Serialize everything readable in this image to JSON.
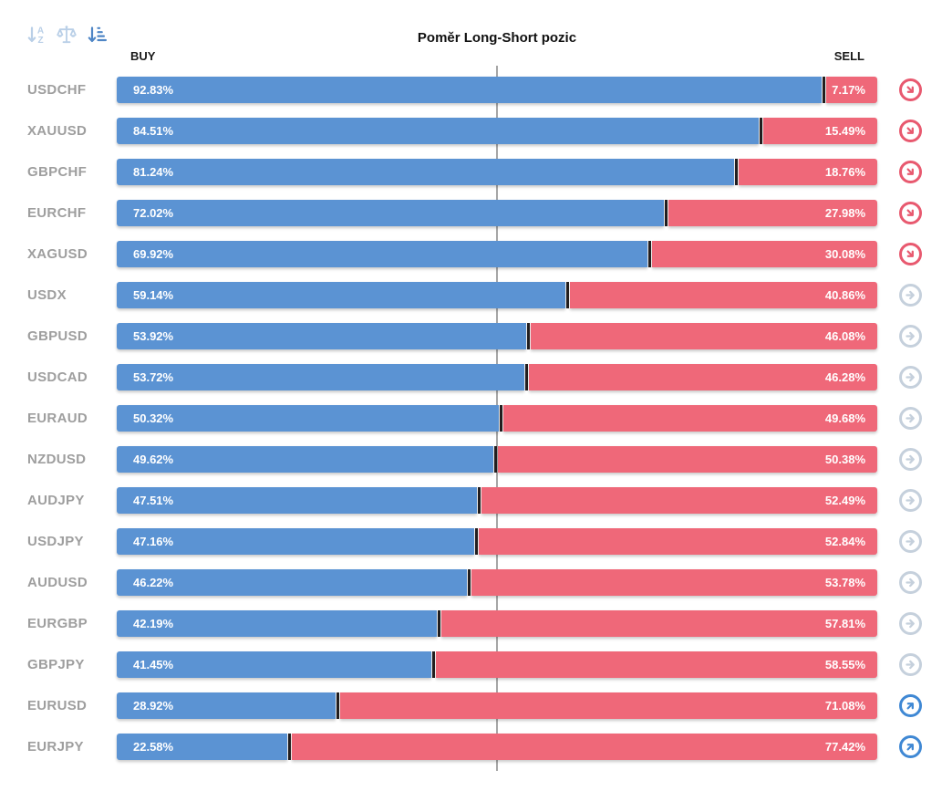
{
  "title": "Poměr Long-Short pozic",
  "columns": {
    "buy": "BUY",
    "sell": "SELL"
  },
  "toolbar": {
    "icons": [
      {
        "name": "sort-alpha-down-icon",
        "active": false
      },
      {
        "name": "balance-scale-icon",
        "active": false
      },
      {
        "name": "sort-amount-down-icon",
        "active": true
      }
    ]
  },
  "icons": {
    "down": "arrow-down-right-circle-icon",
    "flat": "arrow-right-circle-icon",
    "up": "arrow-up-right-circle-icon"
  },
  "colors": {
    "buy": "#5b93d3",
    "sell": "#ef6879",
    "divider": "#231f20",
    "center_line": "#a6a6a6",
    "pair_label": "#9e9e9e",
    "signal_down": "#e8596f",
    "signal_flat": "#c5d0dc",
    "signal_up": "#3f88d4",
    "toolbar_icon": "#b9cfe7",
    "toolbar_icon_active": "#4f86c6"
  },
  "chart_data": {
    "type": "bar",
    "orientation": "horizontal-diverging-stacked",
    "title": "Poměr Long-Short pozic",
    "categories": [
      "USDCHF",
      "XAUUSD",
      "GBPCHF",
      "EURCHF",
      "XAGUSD",
      "USDX",
      "GBPUSD",
      "USDCAD",
      "EURAUD",
      "NZDUSD",
      "AUDJPY",
      "USDJPY",
      "AUDUSD",
      "EURGBP",
      "GBPJPY",
      "EURUSD",
      "EURJPY"
    ],
    "series": [
      {
        "name": "BUY",
        "values": [
          92.83,
          84.51,
          81.24,
          72.02,
          69.92,
          59.14,
          53.92,
          53.72,
          50.32,
          49.62,
          47.51,
          47.16,
          46.22,
          42.19,
          41.45,
          28.92,
          22.58
        ]
      },
      {
        "name": "SELL",
        "values": [
          7.17,
          15.49,
          18.76,
          27.98,
          30.08,
          40.86,
          46.08,
          46.28,
          49.68,
          50.38,
          52.49,
          52.84,
          53.78,
          57.81,
          58.55,
          71.08,
          77.42
        ]
      }
    ],
    "signals": [
      "down",
      "down",
      "down",
      "down",
      "down",
      "flat",
      "flat",
      "flat",
      "flat",
      "flat",
      "flat",
      "flat",
      "flat",
      "flat",
      "flat",
      "up",
      "up"
    ],
    "value_suffix": "%",
    "xlim": [
      0,
      100
    ],
    "center_line_pct": 50,
    "grid": false,
    "legend_position": "top-as-column-headers"
  }
}
